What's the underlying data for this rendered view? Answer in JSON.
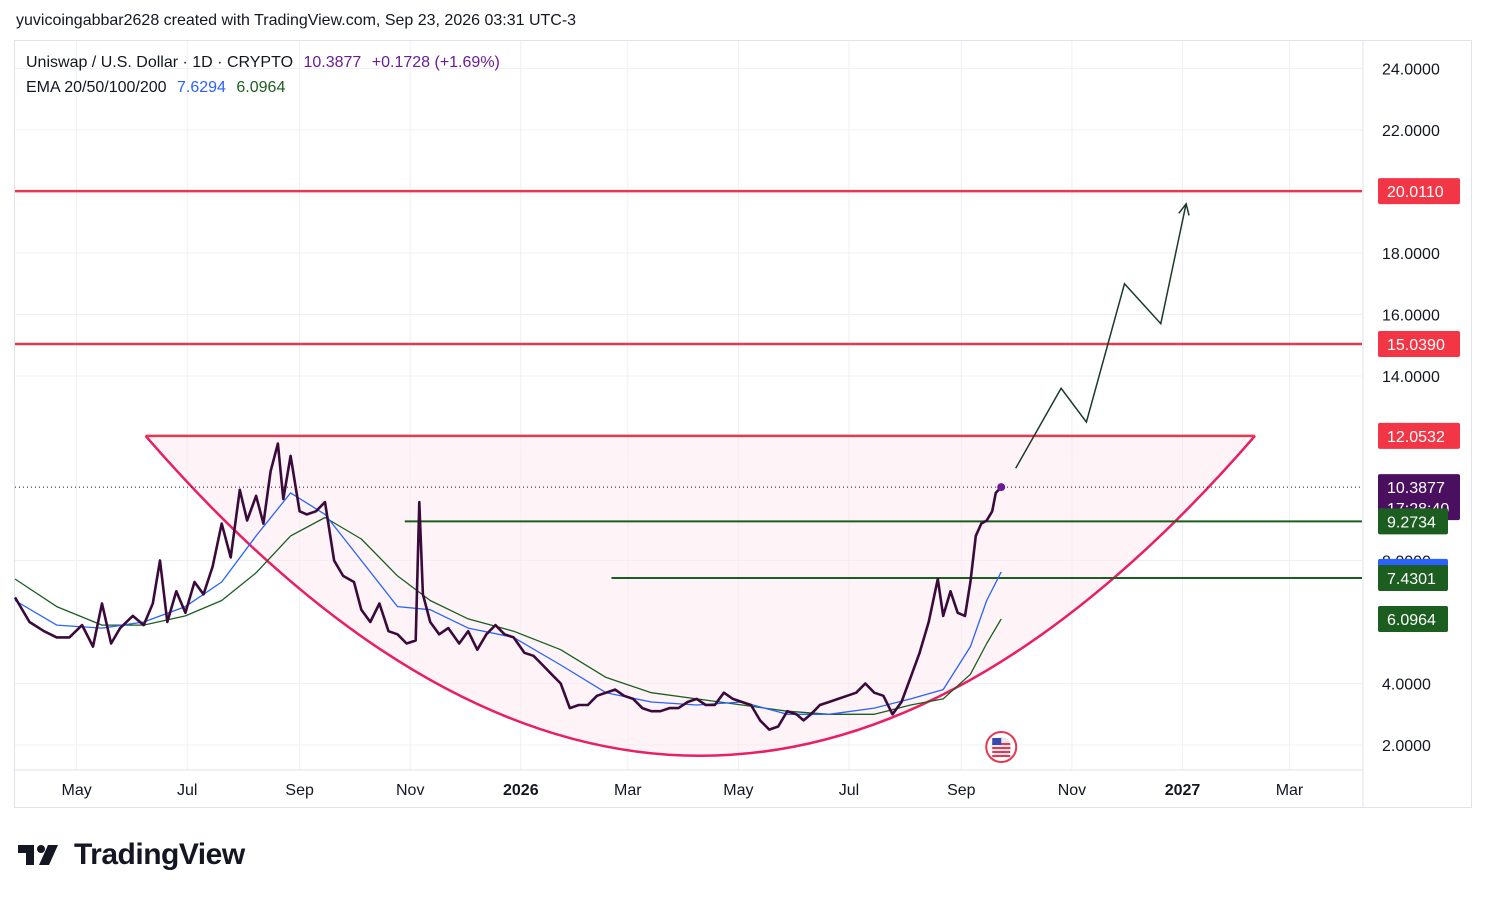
{
  "header": {
    "attribution": "yuvicoingabbar2628 created with TradingView.com, Sep 23, 2026 03:31 UTC-3"
  },
  "legend": {
    "symbol": "Uniswap / U.S. Dollar · 1D · CRYPTO",
    "last": "10.3877",
    "change": "+0.1728 (+1.69%)",
    "ema_label": "EMA 20/50/100/200",
    "ema20": "7.6294",
    "ema50": "6.0964"
  },
  "brand": {
    "name": "TradingView"
  },
  "colors": {
    "price": "#3a0a3a",
    "ema20": "#2962ff",
    "ema50": "#1b5e20",
    "resistance": "#e53950",
    "support": "#1b5e20",
    "cup": "#e91e63",
    "projection": "#1b3a2a"
  },
  "chart_data": {
    "type": "line",
    "ylim": [
      1.5,
      25
    ],
    "y_ticks": [
      "2.0000",
      "4.0000",
      "8.0000",
      "14.0000",
      "16.0000",
      "18.0000",
      "22.0000",
      "24.0000"
    ],
    "x_ticks": [
      "May",
      "Jul",
      "Sep",
      "Nov",
      "2026",
      "Mar",
      "May",
      "Jul",
      "Sep",
      "Nov",
      "2027",
      "Mar"
    ],
    "x_tick_bold": [
      "2026",
      "2027"
    ],
    "x_range": [
      "2025-03-28",
      "2027-04-10"
    ],
    "price_labels": [
      {
        "value": "20.0110",
        "y": 20.011,
        "kind": "resistance"
      },
      {
        "value": "15.0390",
        "y": 15.039,
        "kind": "resistance"
      },
      {
        "value": "12.0532",
        "y": 12.0532,
        "kind": "resistance"
      },
      {
        "value": "10.3877",
        "sub": "17:28:40",
        "y": 10.3877,
        "kind": "last"
      },
      {
        "value": "9.2734",
        "y": 9.2734,
        "kind": "support"
      },
      {
        "value": "7.6294",
        "y": 7.6294,
        "kind": "ema20"
      },
      {
        "value": "7.4301",
        "y": 7.4301,
        "kind": "support"
      },
      {
        "value": "6.0964",
        "y": 6.0964,
        "kind": "ema50"
      }
    ],
    "hlines": [
      {
        "y": 20.011,
        "x_from": "2025-03-28",
        "x_to": "2027-04-10",
        "kind": "resistance"
      },
      {
        "y": 15.039,
        "x_from": "2025-03-28",
        "x_to": "2027-04-10",
        "kind": "resistance"
      },
      {
        "y": 12.0532,
        "x_from": "2025-06-08",
        "x_to": "2027-02-10",
        "kind": "resistance"
      },
      {
        "y": 9.2734,
        "x_from": "2025-10-29",
        "x_to": "2027-04-10",
        "kind": "support"
      },
      {
        "y": 7.4301,
        "x_from": "2026-02-20",
        "x_to": "2027-04-10",
        "kind": "support"
      }
    ],
    "series": [
      {
        "key": "price",
        "x": [
          "2025-03-28",
          "2025-04-05",
          "2025-04-13",
          "2025-04-20",
          "2025-04-27",
          "2025-05-04",
          "2025-05-10",
          "2025-05-15",
          "2025-05-20",
          "2025-05-25",
          "2025-06-01",
          "2025-06-07",
          "2025-06-12",
          "2025-06-16",
          "2025-06-20",
          "2025-06-25",
          "2025-06-30",
          "2025-07-05",
          "2025-07-10",
          "2025-07-15",
          "2025-07-20",
          "2025-07-25",
          "2025-07-30",
          "2025-08-03",
          "2025-08-08",
          "2025-08-12",
          "2025-08-16",
          "2025-08-20",
          "2025-08-23",
          "2025-08-27",
          "2025-09-01",
          "2025-09-05",
          "2025-09-10",
          "2025-09-15",
          "2025-09-20",
          "2025-09-25",
          "2025-10-01",
          "2025-10-05",
          "2025-10-10",
          "2025-10-15",
          "2025-10-20",
          "2025-10-25",
          "2025-10-30",
          "2025-11-04",
          "2025-11-06",
          "2025-11-08",
          "2025-11-12",
          "2025-11-17",
          "2025-11-22",
          "2025-11-28",
          "2025-12-03",
          "2025-12-08",
          "2025-12-13",
          "2025-12-18",
          "2025-12-23",
          "2025-12-28",
          "2026-01-03",
          "2026-01-08",
          "2026-01-13",
          "2026-01-18",
          "2026-01-23",
          "2026-01-28",
          "2026-02-02",
          "2026-02-07",
          "2026-02-12",
          "2026-02-17",
          "2026-02-22",
          "2026-02-27",
          "2026-03-04",
          "2026-03-09",
          "2026-03-14",
          "2026-03-19",
          "2026-03-24",
          "2026-03-29",
          "2026-04-03",
          "2026-04-08",
          "2026-04-13",
          "2026-04-18",
          "2026-04-23",
          "2026-04-28",
          "2026-05-03",
          "2026-05-08",
          "2026-05-13",
          "2026-05-18",
          "2026-05-23",
          "2026-05-28",
          "2026-06-02",
          "2026-06-06",
          "2026-06-10",
          "2026-06-15",
          "2026-06-20",
          "2026-06-25",
          "2026-06-30",
          "2026-07-05",
          "2026-07-10",
          "2026-07-15",
          "2026-07-20",
          "2026-07-25",
          "2026-07-30",
          "2026-08-04",
          "2026-08-09",
          "2026-08-14",
          "2026-08-19",
          "2026-08-22",
          "2026-08-26",
          "2026-08-30",
          "2026-09-03",
          "2026-09-06",
          "2026-09-09",
          "2026-09-12",
          "2026-09-15",
          "2026-09-18",
          "2026-09-20",
          "2026-09-23"
        ],
        "y": [
          6.8,
          6.0,
          5.7,
          5.5,
          5.5,
          5.9,
          5.2,
          6.6,
          5.3,
          5.8,
          6.2,
          5.9,
          6.6,
          8.0,
          6.0,
          7.0,
          6.3,
          7.3,
          6.9,
          7.8,
          9.2,
          8.1,
          10.3,
          9.3,
          10.1,
          9.2,
          10.9,
          11.8,
          10.0,
          11.4,
          9.6,
          9.5,
          9.6,
          9.9,
          8.0,
          7.5,
          7.3,
          6.4,
          6.0,
          6.6,
          5.7,
          5.6,
          5.3,
          5.4,
          9.9,
          6.9,
          6.0,
          5.6,
          5.8,
          5.3,
          5.7,
          5.1,
          5.6,
          5.9,
          5.6,
          5.5,
          5.0,
          4.9,
          4.6,
          4.3,
          4.0,
          3.2,
          3.3,
          3.3,
          3.6,
          3.7,
          3.8,
          3.6,
          3.5,
          3.2,
          3.1,
          3.1,
          3.2,
          3.2,
          3.4,
          3.5,
          3.3,
          3.3,
          3.7,
          3.5,
          3.4,
          3.3,
          2.8,
          2.5,
          2.6,
          3.1,
          3.0,
          2.8,
          3.0,
          3.3,
          3.4,
          3.5,
          3.6,
          3.7,
          4.0,
          3.7,
          3.6,
          3.0,
          3.4,
          4.2,
          5.0,
          6.0,
          7.4,
          6.2,
          7.0,
          6.3,
          6.2,
          7.3,
          8.8,
          9.2,
          9.3,
          9.6,
          10.2,
          10.3877
        ]
      },
      {
        "key": "ema20",
        "x": [
          "2025-03-28",
          "2025-04-20",
          "2025-05-15",
          "2025-06-07",
          "2025-06-30",
          "2025-07-20",
          "2025-08-08",
          "2025-08-27",
          "2025-09-15",
          "2025-10-05",
          "2025-10-25",
          "2025-11-12",
          "2025-12-03",
          "2025-12-28",
          "2026-01-23",
          "2026-02-17",
          "2026-03-14",
          "2026-04-08",
          "2026-05-03",
          "2026-05-28",
          "2026-06-20",
          "2026-07-15",
          "2026-08-04",
          "2026-08-22",
          "2026-09-06",
          "2026-09-15",
          "2026-09-23"
        ],
        "y": [
          6.7,
          5.9,
          5.8,
          6.0,
          6.5,
          7.3,
          8.8,
          10.2,
          9.5,
          8.0,
          6.5,
          6.4,
          5.8,
          5.5,
          4.6,
          3.7,
          3.4,
          3.3,
          3.4,
          3.0,
          3.0,
          3.2,
          3.5,
          3.8,
          5.2,
          6.7,
          7.6294
        ]
      },
      {
        "key": "ema50",
        "x": [
          "2025-03-28",
          "2025-04-20",
          "2025-05-15",
          "2025-06-07",
          "2025-06-30",
          "2025-07-20",
          "2025-08-08",
          "2025-08-27",
          "2025-09-15",
          "2025-10-05",
          "2025-10-25",
          "2025-11-12",
          "2025-12-03",
          "2025-12-28",
          "2026-01-23",
          "2026-02-17",
          "2026-03-14",
          "2026-04-08",
          "2026-05-03",
          "2026-05-28",
          "2026-06-20",
          "2026-07-15",
          "2026-08-04",
          "2026-08-22",
          "2026-09-06",
          "2026-09-15",
          "2026-09-23"
        ],
        "y": [
          7.4,
          6.5,
          5.9,
          5.9,
          6.2,
          6.7,
          7.6,
          8.8,
          9.4,
          8.7,
          7.5,
          6.7,
          6.1,
          5.7,
          5.1,
          4.2,
          3.7,
          3.5,
          3.3,
          3.1,
          3.0,
          3.0,
          3.3,
          3.5,
          4.3,
          5.3,
          6.0964
        ]
      }
    ],
    "cup": {
      "left": {
        "x": "2025-06-08",
        "y": 12.0532
      },
      "bottom": {
        "x": "2026-04-10",
        "y": 1.65
      },
      "right": {
        "x": "2027-02-10",
        "y": 12.0532
      }
    },
    "projection": {
      "x": [
        "2026-10-01",
        "2026-10-26",
        "2026-11-09",
        "2026-11-30",
        "2026-12-20",
        "2027-01-03"
      ],
      "y": [
        11.0,
        13.6,
        12.5,
        17.0,
        15.7,
        19.6
      ]
    }
  }
}
